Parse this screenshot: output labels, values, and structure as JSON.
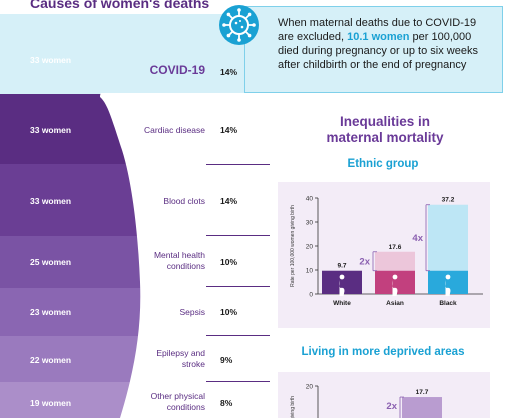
{
  "header": {
    "title": "Causes of women's deaths"
  },
  "covid_note": {
    "text_before": "When maternal deaths due to COVID-19 are excluded, ",
    "highlight": "10.1 women",
    "text_after": " per 100,000 died during pregnancy or up to six weeks after childbirth or the end of pregnancy"
  },
  "causes": [
    {
      "women": "33 women",
      "cause": "COVID-19",
      "pct": "14%"
    },
    {
      "women": "33 women",
      "cause": "Cardiac disease",
      "pct": "14%"
    },
    {
      "women": "33 women",
      "cause": "Blood clots",
      "pct": "14%"
    },
    {
      "women": "25 women",
      "cause": "Mental health conditions",
      "pct": "10%"
    },
    {
      "women": "23 women",
      "cause": "Sepsis",
      "pct": "10%"
    },
    {
      "women": "22 women",
      "cause": "Epilepsy and stroke",
      "pct": "9%"
    },
    {
      "women": "19 women",
      "cause": "Other physical conditions",
      "pct": "8%"
    }
  ],
  "inequalities": {
    "title_line1": "Inequalities in",
    "title_line2": "maternal mortality",
    "ethnic_title": "Ethnic group",
    "deprived_title": "Living in more deprived areas"
  },
  "colors": {
    "purple_dark": "#5a2d82",
    "purple_mid": "#8a5fb0",
    "purple_light": "#b99cd0",
    "pink": "#c2407e",
    "pink_light": "#ecc6da",
    "blue": "#29a9dc",
    "blue_light": "#bde6f5",
    "panel": "#f3ecf7"
  },
  "chart_data": [
    {
      "type": "bar",
      "title": "Ethnic group",
      "categories": [
        "White",
        "Asian",
        "Black"
      ],
      "values": [
        9.7,
        17.6,
        37.2
      ],
      "baseline": 9.7,
      "ratios": [
        "",
        "2x",
        "4x"
      ],
      "ylabel": "Rate per 100,000 women giving birth",
      "ylim": [
        0,
        40
      ],
      "yticks": [
        0,
        10,
        20,
        30,
        40
      ],
      "grid": false
    },
    {
      "type": "bar",
      "title": "Living in more deprived areas",
      "values": [
        17.7
      ],
      "ratios": [
        "2x"
      ],
      "ylabel": "giving birth",
      "ylim": [
        0,
        20
      ],
      "yticks": [
        20
      ],
      "grid": false
    }
  ]
}
